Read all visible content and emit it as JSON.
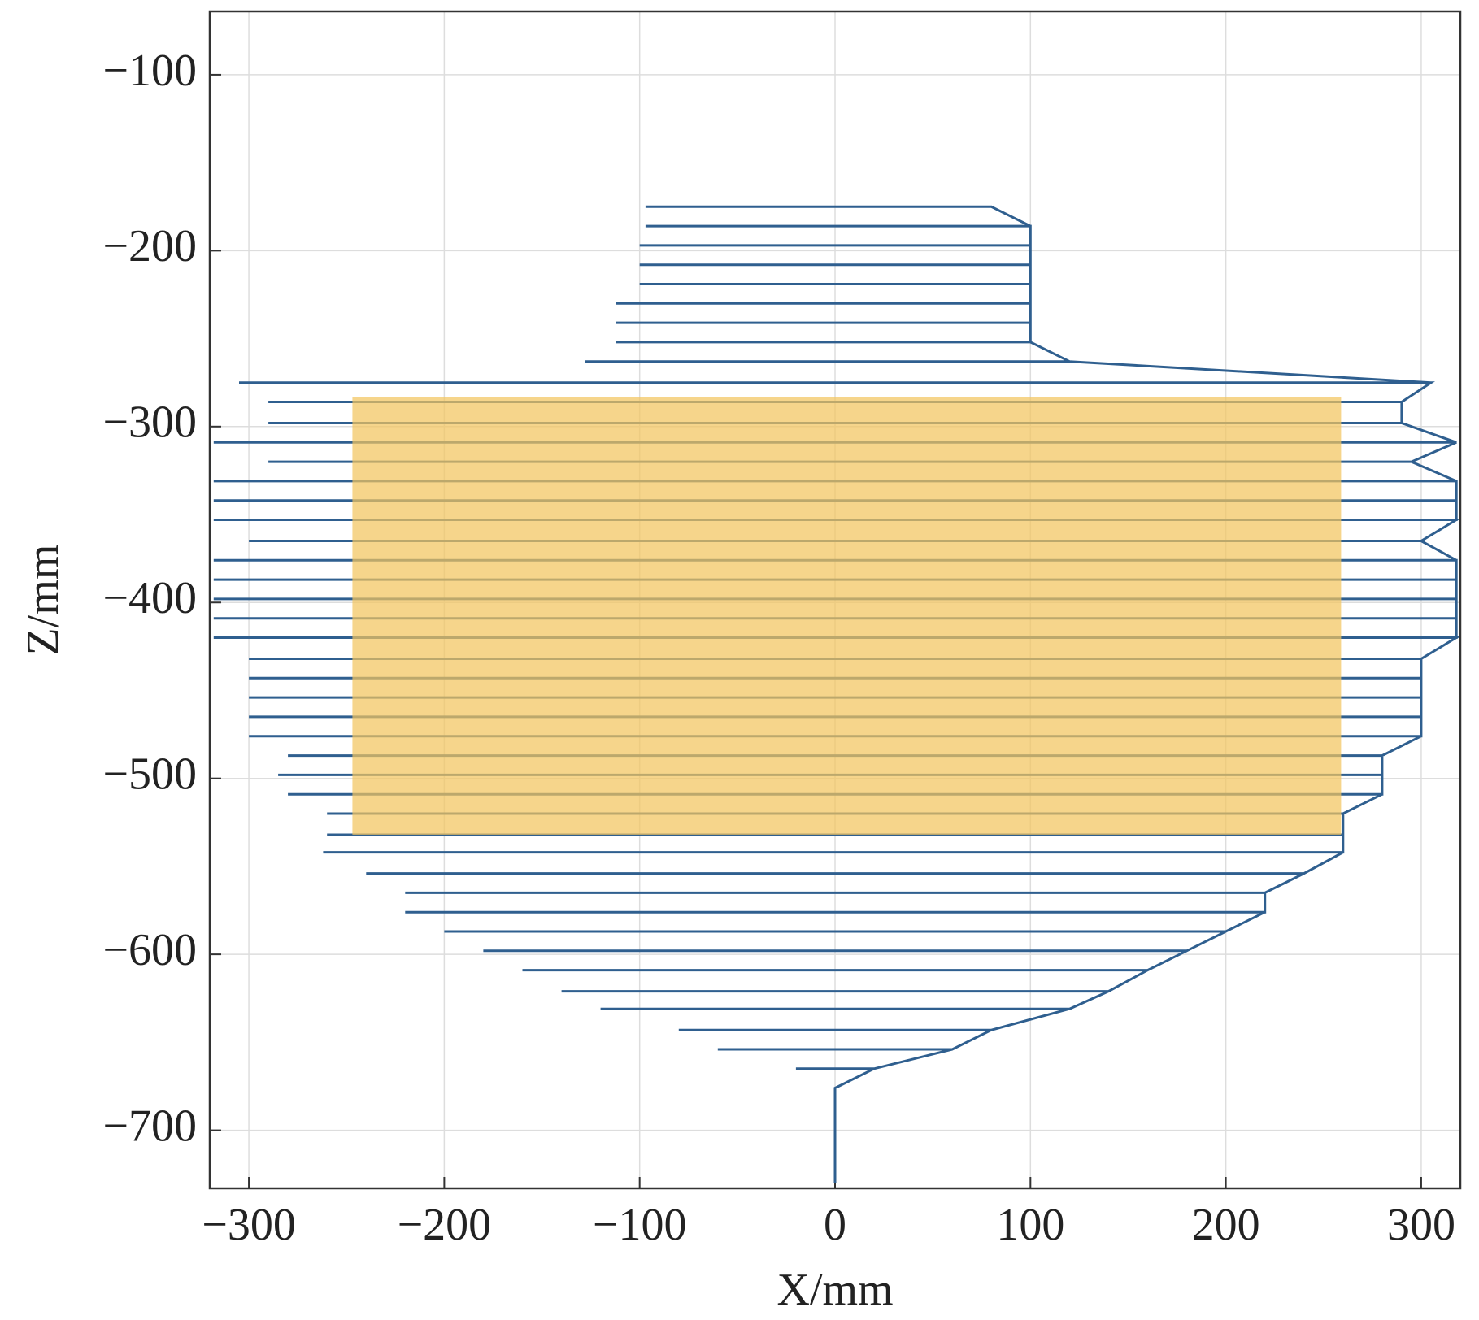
{
  "chart_data": {
    "type": "line",
    "x_label": "X/mm",
    "y_label": "Z/mm",
    "xlim": [
      -320,
      320
    ],
    "ylim": [
      -64,
      -733
    ],
    "xticks": [
      {
        "value": -300,
        "label": "−300"
      },
      {
        "value": -200,
        "label": "−200"
      },
      {
        "value": -100,
        "label": "−100"
      },
      0,
      100,
      200,
      300
    ],
    "yticks": [
      {
        "value": -100,
        "label": "−100"
      },
      {
        "value": -200,
        "label": "−200"
      },
      {
        "value": -300,
        "label": "−300"
      },
      {
        "value": -400,
        "label": "−400"
      },
      {
        "value": -500,
        "label": "−500"
      },
      {
        "value": -600,
        "label": "−600"
      },
      {
        "value": -700,
        "label": "−700"
      }
    ],
    "grid": true,
    "color": "#2f5f8f",
    "region": {
      "x": [
        -247,
        259
      ],
      "y": [
        -283,
        -532
      ],
      "color": "#f3c55e"
    },
    "x": [
      80,
      -97,
      80,
      100,
      -97,
      100,
      100,
      -100,
      100,
      100,
      -100,
      100,
      100,
      -100,
      100,
      100,
      -112,
      100,
      100,
      -112,
      100,
      100,
      -112,
      100,
      120,
      -128,
      120,
      305,
      -305,
      305,
      290,
      -290,
      290,
      290,
      -290,
      290,
      318,
      -318,
      318,
      295,
      -290,
      295,
      318,
      -318,
      318,
      318,
      -318,
      318,
      318,
      -318,
      318,
      300,
      -300,
      300,
      318,
      -318,
      318,
      318,
      -318,
      318,
      318,
      -318,
      318,
      318,
      -318,
      318,
      318,
      -318,
      318,
      300,
      -300,
      300,
      300,
      -300,
      300,
      300,
      -300,
      300,
      300,
      -300,
      300,
      300,
      -300,
      300,
      280,
      -280,
      280,
      280,
      -285,
      280,
      280,
      -280,
      280,
      260,
      -260,
      260,
      260,
      -260,
      260,
      260,
      -262,
      260,
      240,
      -240,
      240,
      220,
      -220,
      220,
      220,
      -220,
      220,
      200,
      -200,
      200,
      180,
      -180,
      180,
      160,
      -160,
      160,
      140,
      -140,
      140,
      120,
      -120,
      120,
      80,
      -80,
      80,
      60,
      -60,
      60,
      20,
      -20,
      20,
      0,
      0
    ],
    "y": [
      -175,
      -175,
      -175,
      -186,
      -186,
      -186,
      -197,
      -197,
      -197,
      -208,
      -208,
      -208,
      -219,
      -219,
      -219,
      -230,
      -230,
      -230,
      -241,
      -241,
      -241,
      -252,
      -252,
      -252,
      -263,
      -263,
      -263,
      -275,
      -275,
      -275,
      -286,
      -286,
      -286,
      -298,
      -298,
      -298,
      -309,
      -309,
      -309,
      -320,
      -320,
      -320,
      -331,
      -331,
      -331,
      -342,
      -342,
      -342,
      -353,
      -353,
      -353,
      -365,
      -365,
      -365,
      -376,
      -376,
      -376,
      -387,
      -387,
      -387,
      -398,
      -398,
      -398,
      -409,
      -409,
      -409,
      -420,
      -420,
      -420,
      -432,
      -432,
      -432,
      -443,
      -443,
      -443,
      -454,
      -454,
      -454,
      -465,
      -465,
      -465,
      -476,
      -476,
      -476,
      -487,
      -487,
      -487,
      -498,
      -498,
      -498,
      -509,
      -509,
      -509,
      -520,
      -520,
      -520,
      -532,
      -532,
      -532,
      -542,
      -542,
      -542,
      -554,
      -554,
      -554,
      -565,
      -565,
      -565,
      -576,
      -576,
      -576,
      -587,
      -587,
      -587,
      -598,
      -598,
      -598,
      -609,
      -609,
      -609,
      -621,
      -621,
      -621,
      -631,
      -631,
      -631,
      -643,
      -643,
      -643,
      -654,
      -654,
      -654,
      -665,
      -665,
      -665,
      -676,
      -730
    ]
  }
}
